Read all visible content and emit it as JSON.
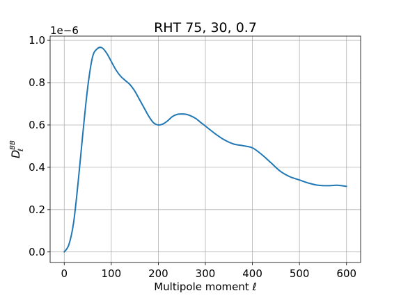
{
  "chart_data": {
    "type": "line",
    "title": "RHT 75, 30, 0.7",
    "xlabel": "Multipole moment ℓ",
    "ylabel_main": "D",
    "ylabel_sup": "BB",
    "ylabel_sub": "ℓ",
    "y_offset_label": "1e−6",
    "xlim": [
      -30,
      630
    ],
    "ylim": [
      -5e-08,
      1.02e-06
    ],
    "xticks": [
      0,
      100,
      200,
      300,
      400,
      500,
      600
    ],
    "xtick_labels": [
      "0",
      "100",
      "200",
      "300",
      "400",
      "500",
      "600"
    ],
    "yticks": [
      0,
      2e-07,
      4e-07,
      6e-07,
      8e-07,
      1e-06
    ],
    "ytick_labels": [
      "0.0",
      "0.2",
      "0.4",
      "0.6",
      "0.8",
      "1.0"
    ],
    "grid": true,
    "series": [
      {
        "color": "#1f77b4",
        "x": [
          0,
          10,
          20,
          30,
          40,
          50,
          60,
          70,
          80,
          90,
          100,
          110,
          120,
          130,
          140,
          150,
          160,
          170,
          180,
          190,
          200,
          210,
          220,
          230,
          240,
          250,
          260,
          270,
          280,
          290,
          300,
          320,
          340,
          360,
          380,
          400,
          420,
          440,
          460,
          480,
          500,
          520,
          540,
          560,
          580,
          600
        ],
        "y": [
          0.0,
          3.5e-08,
          1.4e-07,
          3.4e-07,
          5.7e-07,
          7.8e-07,
          9.2e-07,
          9.6e-07,
          9.65e-07,
          9.4e-07,
          9e-07,
          8.6e-07,
          8.3e-07,
          8.1e-07,
          7.9e-07,
          7.6e-07,
          7.2e-07,
          6.8e-07,
          6.4e-07,
          6.1e-07,
          6e-07,
          6.05e-07,
          6.2e-07,
          6.4e-07,
          6.5e-07,
          6.52e-07,
          6.5e-07,
          6.42e-07,
          6.3e-07,
          6.12e-07,
          5.95e-07,
          5.6e-07,
          5.3e-07,
          5.1e-07,
          5.02e-07,
          4.92e-07,
          4.6e-07,
          4.2e-07,
          3.8e-07,
          3.55e-07,
          3.4e-07,
          3.25e-07,
          3.15e-07,
          3.13e-07,
          3.15e-07,
          3.1e-07
        ]
      }
    ]
  }
}
